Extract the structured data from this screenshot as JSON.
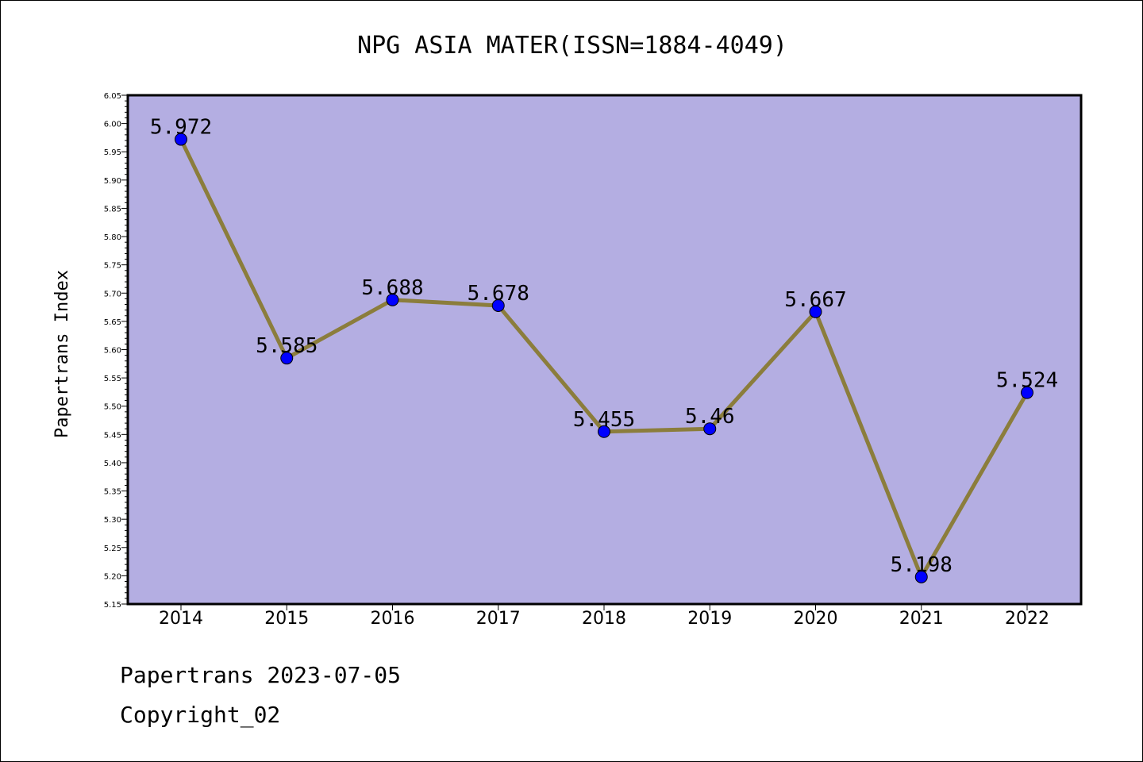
{
  "chart_data": {
    "type": "line",
    "title": "NPG ASIA MATER(ISSN=1884-4049)",
    "xlabel": "",
    "ylabel": "Papertrans Index",
    "categories": [
      "2014",
      "2015",
      "2016",
      "2017",
      "2018",
      "2019",
      "2020",
      "2021",
      "2022"
    ],
    "series": [
      {
        "values": [
          5.972,
          5.585,
          5.688,
          5.678,
          5.455,
          5.46,
          5.667,
          5.198,
          5.524
        ]
      }
    ],
    "data_labels": [
      "5.972",
      "5.585",
      "5.688",
      "5.678",
      "5.455",
      "5.46",
      "5.667",
      "5.198",
      "5.524"
    ],
    "ylim": [
      5.15,
      6.05
    ],
    "yticks": [
      "5.15",
      "5.20",
      "5.25",
      "5.30",
      "5.35",
      "5.40",
      "5.45",
      "5.50",
      "5.55",
      "5.60",
      "5.65",
      "5.70",
      "5.75",
      "5.80",
      "5.85",
      "5.90",
      "5.95",
      "6.00",
      "6.05"
    ],
    "grid": false,
    "colors": {
      "plot_background": "#b4aee2",
      "line": "#8b7d3c",
      "marker": "#0000ff"
    }
  },
  "footer": {
    "line1": "Papertrans 2023-07-05",
    "line2": "Copyright_02"
  }
}
